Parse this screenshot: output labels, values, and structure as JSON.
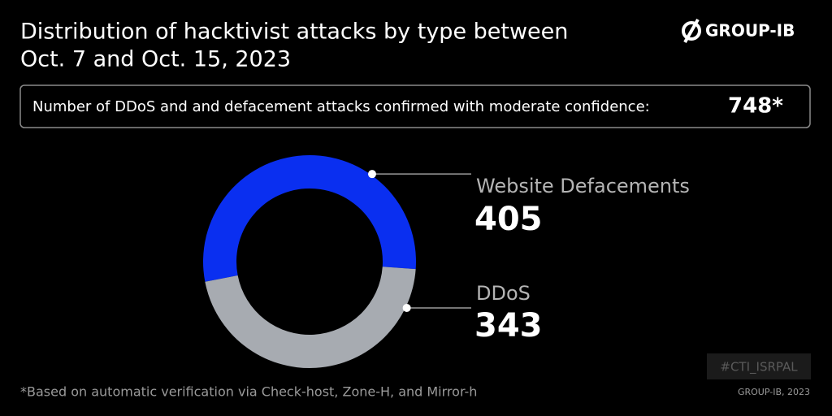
{
  "brand": "GROUP-IB",
  "summary": {
    "text": "Number of DDoS and and defacement attacks confirmed with moderate confidence:",
    "total": "748*"
  },
  "footnote": "*Based on automatic verification via Check-host, Zone-H, and Mirror-h",
  "tag": "#CTI_ISRPAL",
  "credit": "GROUP-IB, 2023",
  "chart_data": {
    "type": "donut",
    "title": [
      "Distribution of hacktivist attacks by type between",
      "Oct. 7 and Oct. 15, 2023"
    ],
    "categories": [
      "Website Defacements",
      "DDoS"
    ],
    "values": [
      405,
      343
    ],
    "colors": [
      "#0a2ff0",
      "#a7abb1"
    ]
  }
}
